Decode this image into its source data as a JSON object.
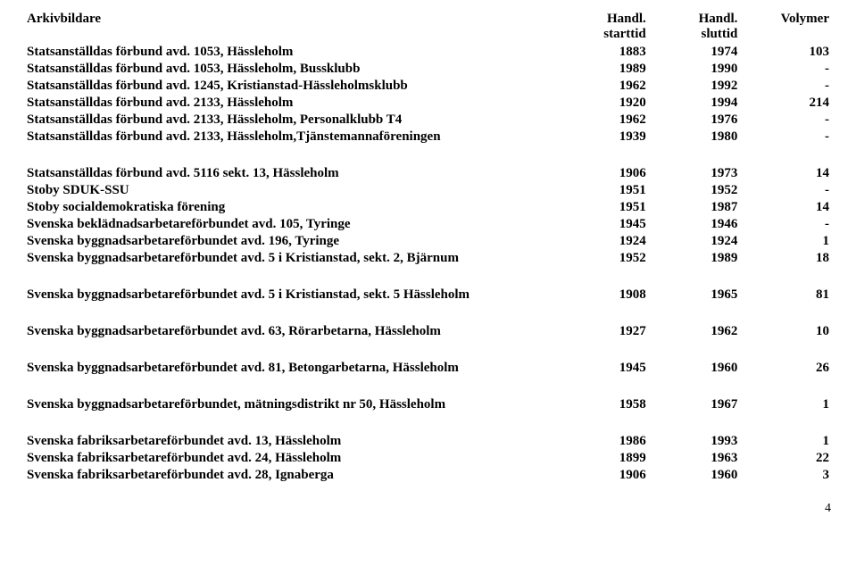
{
  "header": {
    "col1": "Arkivbildare",
    "col2_line1": "Handl.",
    "col2_line2": "starttid",
    "col3_line1": "Handl.",
    "col3_line2": "sluttid",
    "col4": "Volymer"
  },
  "groups": [
    {
      "rows": [
        {
          "name": "Statsanställdas förbund avd. 1053, Hässleholm",
          "start": "1883",
          "end": "1974",
          "vol": "103"
        },
        {
          "name": "Statsanställdas förbund avd. 1053, Hässleholm, Bussklubb",
          "start": "1989",
          "end": "1990",
          "vol": "-"
        },
        {
          "name": "Statsanställdas förbund avd. 1245, Kristianstad-Hässleholmsklubb",
          "start": "1962",
          "end": "1992",
          "vol": "-"
        },
        {
          "name": "Statsanställdas förbund avd. 2133, Hässleholm",
          "start": "1920",
          "end": "1994",
          "vol": "214"
        },
        {
          "name": "Statsanställdas förbund avd. 2133, Hässleholm, Personalklubb T4",
          "start": "1962",
          "end": "1976",
          "vol": "-"
        },
        {
          "name": "Statsanställdas förbund avd. 2133, Hässleholm,Tjänstemannaföreningen",
          "start": "1939",
          "end": "1980",
          "vol": "-"
        }
      ]
    },
    {
      "rows": [
        {
          "name": "Statsanställdas förbund avd. 5116 sekt. 13, Hässleholm",
          "start": "1906",
          "end": "1973",
          "vol": "14"
        },
        {
          "name": "Stoby SDUK-SSU",
          "start": "1951",
          "end": "1952",
          "vol": "-"
        },
        {
          "name": "Stoby socialdemokratiska förening",
          "start": "1951",
          "end": "1987",
          "vol": "14"
        },
        {
          "name": "Svenska beklädnadsarbetareförbundet avd. 105, Tyringe",
          "start": "1945",
          "end": "1946",
          "vol": "-"
        },
        {
          "name": "Svenska byggnadsarbetareförbundet avd. 196, Tyringe",
          "start": "1924",
          "end": "1924",
          "vol": "1"
        },
        {
          "name": "Svenska byggnadsarbetareförbundet avd. 5 i Kristianstad, sekt. 2, Bjärnum",
          "start": "1952",
          "end": "1989",
          "vol": "18"
        }
      ]
    },
    {
      "rows": [
        {
          "name": "Svenska byggnadsarbetareförbundet avd. 5 i Kristianstad, sekt. 5 Hässleholm",
          "start": "1908",
          "end": "1965",
          "vol": "81"
        }
      ]
    },
    {
      "rows": [
        {
          "name": "Svenska byggnadsarbetareförbundet avd. 63, Rörarbetarna, Hässleholm",
          "start": "1927",
          "end": "1962",
          "vol": "10"
        }
      ]
    },
    {
      "rows": [
        {
          "name": "Svenska byggnadsarbetareförbundet avd. 81, Betongarbetarna, Hässleholm",
          "start": "1945",
          "end": "1960",
          "vol": "26"
        }
      ]
    },
    {
      "rows": [
        {
          "name": "Svenska byggnadsarbetareförbundet, mätningsdistrikt nr 50, Hässleholm",
          "start": "1958",
          "end": "1967",
          "vol": "1"
        }
      ]
    },
    {
      "rows": [
        {
          "name": "Svenska fabriksarbetareförbundet avd. 13, Hässleholm",
          "start": "1986",
          "end": "1993",
          "vol": "1"
        },
        {
          "name": "Svenska fabriksarbetareförbundet avd. 24, Hässleholm",
          "start": "1899",
          "end": "1963",
          "vol": "22"
        },
        {
          "name": "Svenska fabriksarbetareförbundet avd. 28, Ignaberga",
          "start": "1906",
          "end": "1960",
          "vol": "3"
        }
      ]
    }
  ],
  "page_number": "4"
}
